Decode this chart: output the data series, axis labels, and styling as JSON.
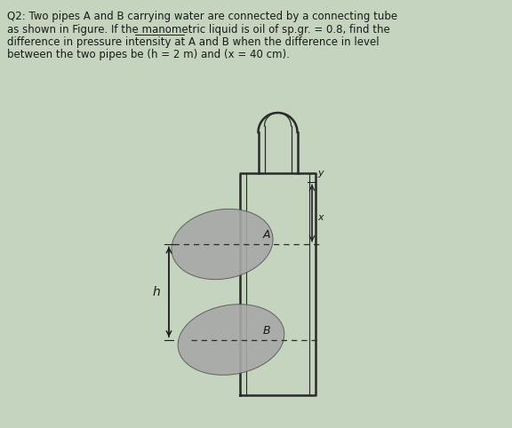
{
  "bg_color": "#c5d4be",
  "text_color": "#1a1a1a",
  "font_size": 8.5,
  "title_lines": [
    "Q2: Two pipes A and B carrying water are connected by a connecting tube",
    "as shown in Figure. If the manometric liquid is oil of sp.gr. = 0.8, find the",
    "difference in pressure intensity at A and B when the difference in level",
    "between the two pipes be (h = 2 m) and (x = 40 cm)."
  ],
  "underline_word": "manometric",
  "diagram": {
    "tube_color": "#2a2a2a",
    "pipe_fill": "#a8a8a8",
    "pipe_edge": "#555555"
  }
}
